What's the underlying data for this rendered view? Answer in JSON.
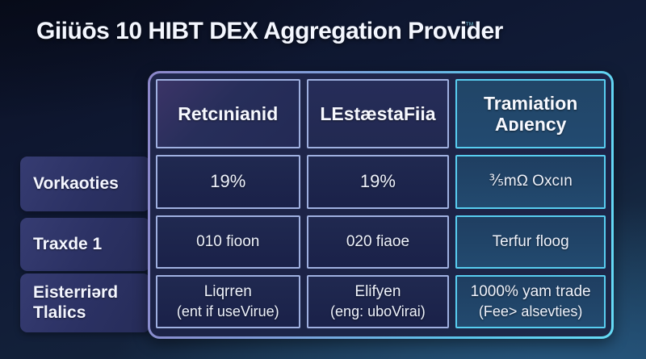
{
  "title": {
    "text": "Giiüōs 10 HIBT DEX Aggregation Provider",
    "mark": "™"
  },
  "grid": {
    "headers": [
      "Retcınianid",
      "LEstæstaFiia",
      "Tramiation Aᴅıency"
    ],
    "row_labels": [
      "Vorkaoties",
      "Traxde 1",
      "Eisterriərd Tlalics"
    ],
    "cells": [
      [
        {
          "l1": "19%"
        },
        {
          "l1": "19%"
        },
        {
          "l1": "⅗mΩ Oxcın"
        }
      ],
      [
        {
          "l1": "010 fioon"
        },
        {
          "l1": "020 fiaoe"
        },
        {
          "l1": "Terfur floog"
        }
      ],
      [
        {
          "l1": "Liqrren",
          "l2": "(ent if useVirue)"
        },
        {
          "l1": "Elifyen",
          "l2": "(eng: uboVirai)"
        },
        {
          "l1": "1000% yam trade",
          "l2": "(Fee> alsevties)"
        }
      ]
    ]
  },
  "colors": {
    "background_top": "#0b1126",
    "background_bottom": "#1b3a57",
    "panel_border_purple": "#8d87ca",
    "panel_border_cyan": "#66dbf6",
    "cell_navy": "#1d2450",
    "cell_teal": "#214668",
    "cell_border_periwinkle": "#9fb0e0",
    "cell_border_cyan": "#58cdf0",
    "pill_fill": "#2b3163",
    "text": "#f4f7ff"
  },
  "chart_data": {
    "type": "table",
    "title": "Giiüōs 10 HIBT DEX Aggregation Provider",
    "columns": [
      "",
      "Retcınianid",
      "LEstæstaFiia",
      "Tramiation Aᴅıency"
    ],
    "rows": [
      [
        "Vorkaoties",
        "19%",
        "19%",
        "⅗mΩ Oxcın"
      ],
      [
        "Traxde 1",
        "010 fioon",
        "020 fiaoe",
        "Terfur floog"
      ],
      [
        "Eisterriərd Tlalics",
        "Liqrren (ent if useVirue)",
        "Elifyen (eng: uboVirai)",
        "1000% yam trade (Fee> alsevties)"
      ]
    ]
  }
}
